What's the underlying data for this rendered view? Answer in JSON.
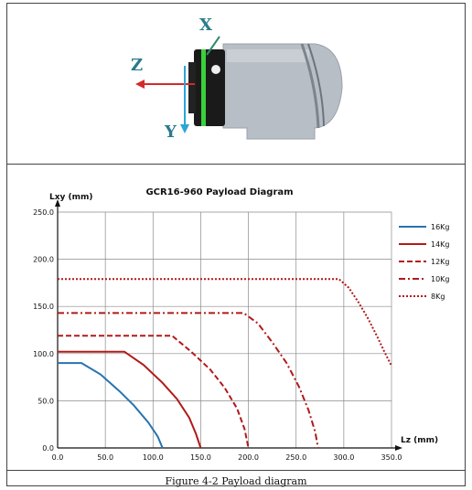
{
  "illustration": {
    "axis_x_label": "X",
    "axis_y_label": "Y",
    "axis_z_label": "Z",
    "colors": {
      "x_axis": "#2e8b6a",
      "y_axis": "#2aa6d6",
      "z_axis": "#d42a2a",
      "text": "#2b7a8c",
      "body": "#b8bec6",
      "flange": "#1a1a1a",
      "ring": "#39d13b"
    }
  },
  "caption": "Figure 4-2 Payload diagram",
  "chart_data": {
    "type": "line",
    "title": "GCR16-960 Payload Diagram",
    "xlabel": "Lz (mm)",
    "ylabel": "Lxy (mm)",
    "xlim": [
      0,
      350
    ],
    "ylim": [
      0,
      250
    ],
    "x_ticks": [
      "0.0",
      "50.0",
      "100.0",
      "150.0",
      "200.0",
      "250.0",
      "300.0",
      "350.0"
    ],
    "y_ticks": [
      "0.0",
      "50.0",
      "100.0",
      "150.0",
      "200.0",
      "250.0"
    ],
    "grid": true,
    "legend_position": "right",
    "series": [
      {
        "name": "16Kg",
        "color": "#2873b0",
        "dash": "solid",
        "points": [
          [
            0,
            90
          ],
          [
            25,
            90
          ],
          [
            45,
            78
          ],
          [
            65,
            60
          ],
          [
            80,
            45
          ],
          [
            95,
            27
          ],
          [
            105,
            12
          ],
          [
            110,
            0
          ]
        ]
      },
      {
        "name": "14Kg",
        "color": "#b01a1a",
        "dash": "solid",
        "points": [
          [
            0,
            102
          ],
          [
            70,
            102
          ],
          [
            90,
            88
          ],
          [
            110,
            69
          ],
          [
            125,
            52
          ],
          [
            138,
            32
          ],
          [
            145,
            15
          ],
          [
            150,
            0
          ]
        ]
      },
      {
        "name": "12Kg",
        "color": "#b01a1a",
        "dash": "dashed",
        "points": [
          [
            0,
            119
          ],
          [
            120,
            119
          ],
          [
            140,
            102
          ],
          [
            160,
            83
          ],
          [
            175,
            64
          ],
          [
            188,
            42
          ],
          [
            196,
            20
          ],
          [
            200,
            0
          ]
        ]
      },
      {
        "name": "10Kg",
        "color": "#b01a1a",
        "dash": "dashdot",
        "points": [
          [
            0,
            143
          ],
          [
            195,
            143
          ],
          [
            210,
            132
          ],
          [
            225,
            112
          ],
          [
            240,
            90
          ],
          [
            253,
            65
          ],
          [
            263,
            40
          ],
          [
            270,
            17
          ],
          [
            273,
            0
          ]
        ]
      },
      {
        "name": "8Kg",
        "color": "#b01a1a",
        "dash": "dotted",
        "points": [
          [
            0,
            179
          ],
          [
            295,
            179
          ],
          [
            305,
            170
          ],
          [
            315,
            155
          ],
          [
            325,
            138
          ],
          [
            335,
            118
          ],
          [
            342,
            103
          ],
          [
            350,
            87
          ]
        ]
      }
    ]
  }
}
